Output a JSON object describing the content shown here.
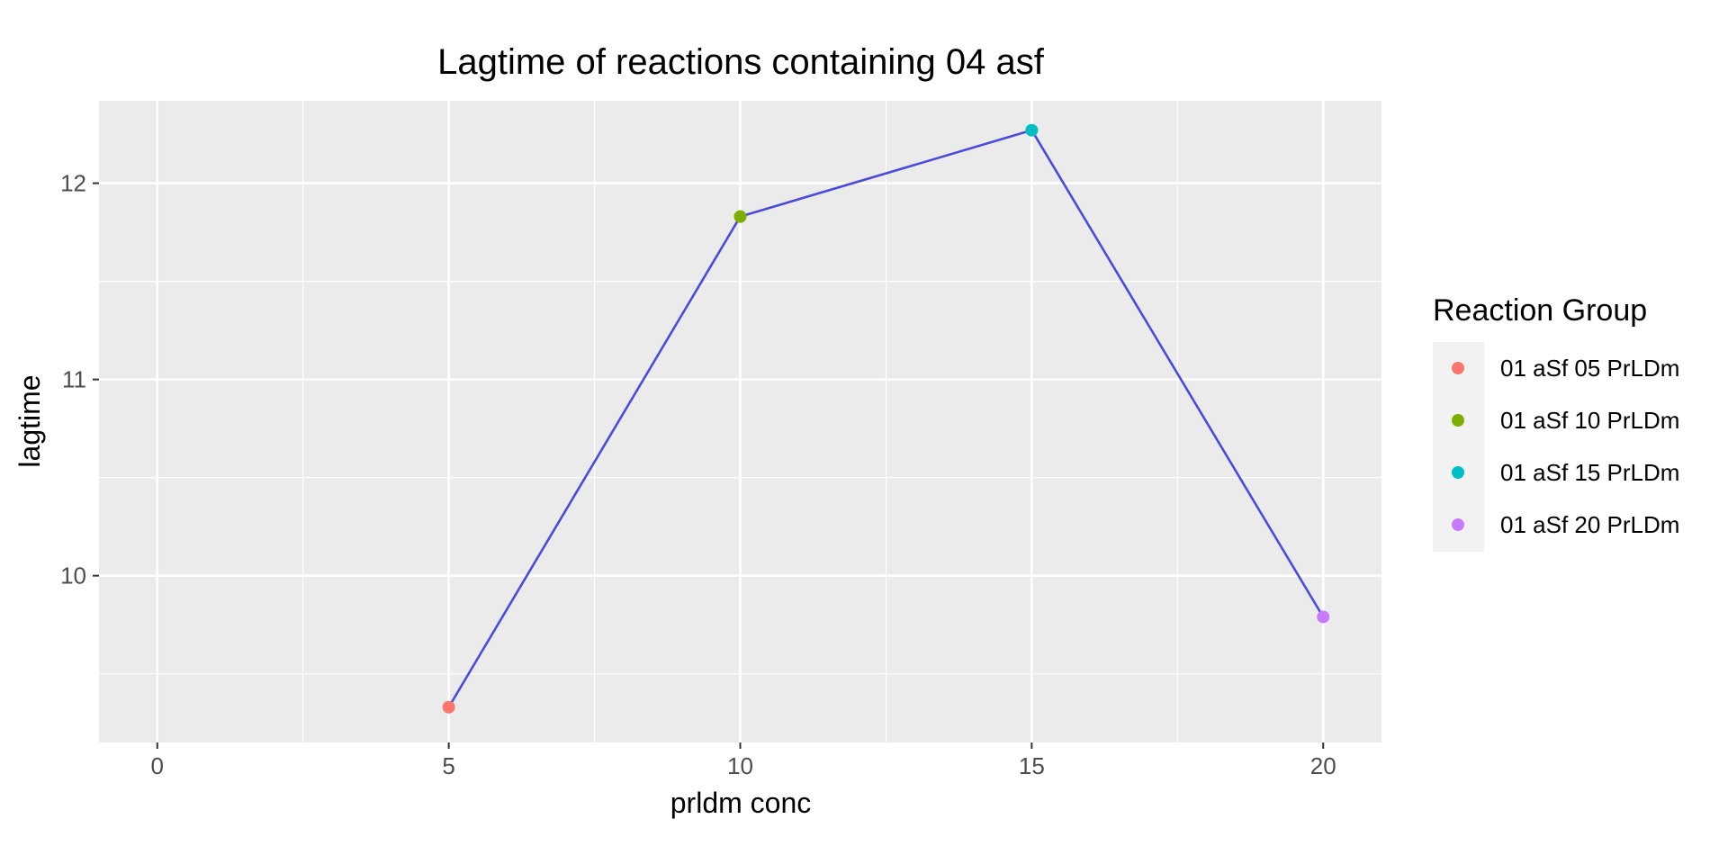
{
  "chart_data": {
    "type": "line",
    "title": "Lagtime of reactions containing 04 asf",
    "xlabel": "prldm conc",
    "ylabel": "lagtime",
    "x": [
      5,
      10,
      15,
      20
    ],
    "y": [
      9.33,
      11.83,
      12.27,
      9.79
    ],
    "point_groups": [
      "01 aSf 05 PrLDm",
      "01 aSf 10 PrLDm",
      "01 aSf 15 PrLDm",
      "01 aSf 20 PrLDm"
    ],
    "line_color": "#4a4adb",
    "xlim": [
      -1,
      21
    ],
    "ylim": [
      9.15,
      12.42
    ],
    "xticks": [
      0,
      5,
      10,
      15,
      20
    ],
    "xtick_labels": [
      "0",
      "5",
      "10",
      "15",
      "20"
    ],
    "yticks": [
      10,
      11,
      12
    ],
    "ytick_labels": [
      "10",
      "11",
      "12"
    ],
    "grid": true,
    "legend": {
      "title": "Reaction Group",
      "position": "right",
      "entries": [
        {
          "label": "01 aSf 05 PrLDm",
          "color": "#F8766D"
        },
        {
          "label": "01 aSf 10 PrLDm",
          "color": "#7CAE00"
        },
        {
          "label": "01 aSf 15 PrLDm",
          "color": "#00BFC4"
        },
        {
          "label": "01 aSf 20 PrLDm",
          "color": "#C77CFF"
        }
      ]
    }
  }
}
